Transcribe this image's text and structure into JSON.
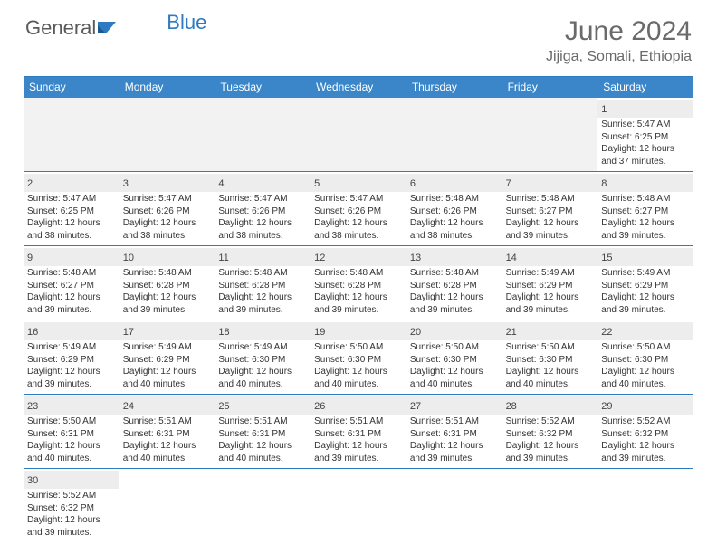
{
  "brand": {
    "part1": "General",
    "part2": "Blue"
  },
  "title": "June 2024",
  "location": "Jijiga, Somali, Ethiopia",
  "colors": {
    "header_bg": "#3b86c8",
    "rule": "#2f7bbf",
    "daynum_bg": "#ededed",
    "empty_bg": "#f2f2f2",
    "text": "#333333",
    "title_text": "#6a6a6a"
  },
  "daynames": [
    "Sunday",
    "Monday",
    "Tuesday",
    "Wednesday",
    "Thursday",
    "Friday",
    "Saturday"
  ],
  "weeks": [
    [
      {
        "blank": true
      },
      {
        "blank": true
      },
      {
        "blank": true
      },
      {
        "blank": true
      },
      {
        "blank": true
      },
      {
        "blank": true
      },
      {
        "d": "1",
        "sr": "Sunrise: 5:47 AM",
        "ss": "Sunset: 6:25 PM",
        "dl1": "Daylight: 12 hours",
        "dl2": "and 37 minutes."
      }
    ],
    [
      {
        "d": "2",
        "sr": "Sunrise: 5:47 AM",
        "ss": "Sunset: 6:25 PM",
        "dl1": "Daylight: 12 hours",
        "dl2": "and 38 minutes."
      },
      {
        "d": "3",
        "sr": "Sunrise: 5:47 AM",
        "ss": "Sunset: 6:26 PM",
        "dl1": "Daylight: 12 hours",
        "dl2": "and 38 minutes."
      },
      {
        "d": "4",
        "sr": "Sunrise: 5:47 AM",
        "ss": "Sunset: 6:26 PM",
        "dl1": "Daylight: 12 hours",
        "dl2": "and 38 minutes."
      },
      {
        "d": "5",
        "sr": "Sunrise: 5:47 AM",
        "ss": "Sunset: 6:26 PM",
        "dl1": "Daylight: 12 hours",
        "dl2": "and 38 minutes."
      },
      {
        "d": "6",
        "sr": "Sunrise: 5:48 AM",
        "ss": "Sunset: 6:26 PM",
        "dl1": "Daylight: 12 hours",
        "dl2": "and 38 minutes."
      },
      {
        "d": "7",
        "sr": "Sunrise: 5:48 AM",
        "ss": "Sunset: 6:27 PM",
        "dl1": "Daylight: 12 hours",
        "dl2": "and 39 minutes."
      },
      {
        "d": "8",
        "sr": "Sunrise: 5:48 AM",
        "ss": "Sunset: 6:27 PM",
        "dl1": "Daylight: 12 hours",
        "dl2": "and 39 minutes."
      }
    ],
    [
      {
        "d": "9",
        "sr": "Sunrise: 5:48 AM",
        "ss": "Sunset: 6:27 PM",
        "dl1": "Daylight: 12 hours",
        "dl2": "and 39 minutes."
      },
      {
        "d": "10",
        "sr": "Sunrise: 5:48 AM",
        "ss": "Sunset: 6:28 PM",
        "dl1": "Daylight: 12 hours",
        "dl2": "and 39 minutes."
      },
      {
        "d": "11",
        "sr": "Sunrise: 5:48 AM",
        "ss": "Sunset: 6:28 PM",
        "dl1": "Daylight: 12 hours",
        "dl2": "and 39 minutes."
      },
      {
        "d": "12",
        "sr": "Sunrise: 5:48 AM",
        "ss": "Sunset: 6:28 PM",
        "dl1": "Daylight: 12 hours",
        "dl2": "and 39 minutes."
      },
      {
        "d": "13",
        "sr": "Sunrise: 5:48 AM",
        "ss": "Sunset: 6:28 PM",
        "dl1": "Daylight: 12 hours",
        "dl2": "and 39 minutes."
      },
      {
        "d": "14",
        "sr": "Sunrise: 5:49 AM",
        "ss": "Sunset: 6:29 PM",
        "dl1": "Daylight: 12 hours",
        "dl2": "and 39 minutes."
      },
      {
        "d": "15",
        "sr": "Sunrise: 5:49 AM",
        "ss": "Sunset: 6:29 PM",
        "dl1": "Daylight: 12 hours",
        "dl2": "and 39 minutes."
      }
    ],
    [
      {
        "d": "16",
        "sr": "Sunrise: 5:49 AM",
        "ss": "Sunset: 6:29 PM",
        "dl1": "Daylight: 12 hours",
        "dl2": "and 39 minutes."
      },
      {
        "d": "17",
        "sr": "Sunrise: 5:49 AM",
        "ss": "Sunset: 6:29 PM",
        "dl1": "Daylight: 12 hours",
        "dl2": "and 40 minutes."
      },
      {
        "d": "18",
        "sr": "Sunrise: 5:49 AM",
        "ss": "Sunset: 6:30 PM",
        "dl1": "Daylight: 12 hours",
        "dl2": "and 40 minutes."
      },
      {
        "d": "19",
        "sr": "Sunrise: 5:50 AM",
        "ss": "Sunset: 6:30 PM",
        "dl1": "Daylight: 12 hours",
        "dl2": "and 40 minutes."
      },
      {
        "d": "20",
        "sr": "Sunrise: 5:50 AM",
        "ss": "Sunset: 6:30 PM",
        "dl1": "Daylight: 12 hours",
        "dl2": "and 40 minutes."
      },
      {
        "d": "21",
        "sr": "Sunrise: 5:50 AM",
        "ss": "Sunset: 6:30 PM",
        "dl1": "Daylight: 12 hours",
        "dl2": "and 40 minutes."
      },
      {
        "d": "22",
        "sr": "Sunrise: 5:50 AM",
        "ss": "Sunset: 6:30 PM",
        "dl1": "Daylight: 12 hours",
        "dl2": "and 40 minutes."
      }
    ],
    [
      {
        "d": "23",
        "sr": "Sunrise: 5:50 AM",
        "ss": "Sunset: 6:31 PM",
        "dl1": "Daylight: 12 hours",
        "dl2": "and 40 minutes."
      },
      {
        "d": "24",
        "sr": "Sunrise: 5:51 AM",
        "ss": "Sunset: 6:31 PM",
        "dl1": "Daylight: 12 hours",
        "dl2": "and 40 minutes."
      },
      {
        "d": "25",
        "sr": "Sunrise: 5:51 AM",
        "ss": "Sunset: 6:31 PM",
        "dl1": "Daylight: 12 hours",
        "dl2": "and 40 minutes."
      },
      {
        "d": "26",
        "sr": "Sunrise: 5:51 AM",
        "ss": "Sunset: 6:31 PM",
        "dl1": "Daylight: 12 hours",
        "dl2": "and 39 minutes."
      },
      {
        "d": "27",
        "sr": "Sunrise: 5:51 AM",
        "ss": "Sunset: 6:31 PM",
        "dl1": "Daylight: 12 hours",
        "dl2": "and 39 minutes."
      },
      {
        "d": "28",
        "sr": "Sunrise: 5:52 AM",
        "ss": "Sunset: 6:32 PM",
        "dl1": "Daylight: 12 hours",
        "dl2": "and 39 minutes."
      },
      {
        "d": "29",
        "sr": "Sunrise: 5:52 AM",
        "ss": "Sunset: 6:32 PM",
        "dl1": "Daylight: 12 hours",
        "dl2": "and 39 minutes."
      }
    ],
    [
      {
        "d": "30",
        "sr": "Sunrise: 5:52 AM",
        "ss": "Sunset: 6:32 PM",
        "dl1": "Daylight: 12 hours",
        "dl2": "and 39 minutes."
      },
      {
        "blank": true
      },
      {
        "blank": true
      },
      {
        "blank": true
      },
      {
        "blank": true
      },
      {
        "blank": true
      },
      {
        "blank": true
      }
    ]
  ]
}
